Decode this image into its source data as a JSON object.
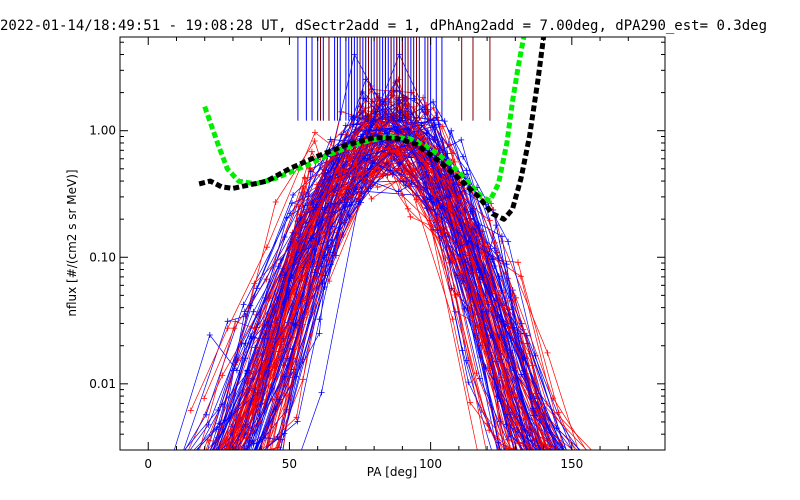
{
  "chart_data": {
    "type": "line",
    "title": "2022-01-14/18:49:51 - 19:08:28 UT, dSectr2add = 1, dPhAng2add = 7.00deg, dPA290_est=   0.3deg",
    "xlabel": "PA [deg]",
    "ylabel": "nflux [#/(cm2 s sr MeV)]",
    "xlim": [
      -10,
      183
    ],
    "ylim": [
      0.003,
      5.5
    ],
    "yscale": "log",
    "x_ticks": [
      0,
      50,
      100,
      150
    ],
    "x_tick_labels": [
      "0",
      "50",
      "100",
      "150"
    ],
    "y_ticks": [
      0.01,
      0.1,
      1.0
    ],
    "y_tick_labels": [
      "0.01",
      "0.10",
      "1.00"
    ],
    "grid": false,
    "legend": "none",
    "colors": {
      "blue_series": "#0000ff",
      "red_series": "#ff0000",
      "dark_red_markers": "#800000",
      "green_fit": "#00ee00",
      "black_fit": "#000000"
    },
    "series": [
      {
        "x": [
          20,
          25,
          28,
          32,
          38,
          45,
          55,
          65,
          75,
          85,
          93,
          100,
          107,
          113,
          118,
          121,
          124,
          127,
          129,
          131,
          133
        ],
        "values": [
          1.55,
          0.75,
          0.5,
          0.4,
          0.38,
          0.42,
          0.52,
          0.66,
          0.8,
          0.9,
          0.86,
          0.72,
          0.55,
          0.4,
          0.3,
          0.28,
          0.38,
          0.8,
          1.7,
          3.2,
          5.5
        ],
        "color": "#00ee00",
        "style": "thick-dashed"
      },
      {
        "x": [
          18,
          22,
          26,
          30,
          35,
          42,
          50,
          60,
          70,
          80,
          88,
          95,
          102,
          110,
          117,
          122,
          126,
          129,
          132,
          135,
          138,
          140
        ],
        "values": [
          0.38,
          0.4,
          0.36,
          0.35,
          0.37,
          0.4,
          0.5,
          0.63,
          0.77,
          0.88,
          0.87,
          0.78,
          0.6,
          0.42,
          0.3,
          0.22,
          0.2,
          0.24,
          0.42,
          0.9,
          2.5,
          5.5
        ],
        "color": "#000000",
        "style": "thick-dashed"
      }
    ],
    "vertical_markers": {
      "y_from": 1.2,
      "y_to": 5.5,
      "blue_x": [
        53,
        56,
        58,
        60,
        62,
        64,
        66,
        68,
        70,
        71,
        72,
        73,
        74,
        75,
        76,
        77,
        78,
        79,
        80,
        81,
        82,
        83,
        84,
        85,
        86,
        87,
        88,
        89,
        90,
        91,
        92,
        93,
        94,
        96,
        98,
        100,
        102,
        104
      ],
      "red_x": [
        61,
        64,
        67,
        72,
        75,
        78,
        81,
        84,
        86,
        88,
        90,
        92,
        95,
        99,
        111,
        115,
        121
      ]
    }
  }
}
